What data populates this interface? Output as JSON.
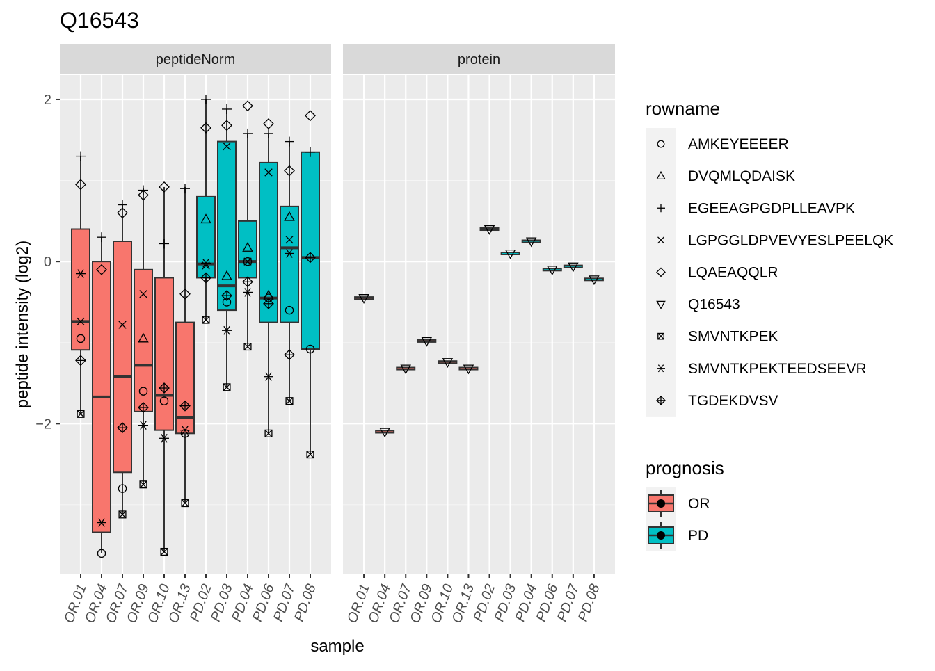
{
  "chart_data": {
    "type": "boxplot",
    "title": "Q16543",
    "xlabel": "sample",
    "ylabel": "peptide intensity (log2)",
    "ylim": [
      -3.85,
      2.3
    ],
    "yticks": [
      -2,
      0,
      2
    ],
    "grid": true,
    "legend_placement": "right",
    "facets": [
      "peptideNorm",
      "protein"
    ],
    "samples": [
      "OR.01",
      "OR.04",
      "OR.07",
      "OR.09",
      "OR.10",
      "OR.13",
      "PD.02",
      "PD.03",
      "PD.04",
      "PD.06",
      "PD.07",
      "PD.08"
    ],
    "prognosis": [
      "OR",
      "OR",
      "OR",
      "OR",
      "OR",
      "OR",
      "PD",
      "PD",
      "PD",
      "PD",
      "PD",
      "PD"
    ],
    "fill_legend": {
      "title": "prognosis",
      "items": [
        {
          "label": "OR",
          "color": "#F8766D"
        },
        {
          "label": "PD",
          "color": "#00BFC4"
        }
      ]
    },
    "shape_legend": {
      "title": "rowname",
      "items": [
        {
          "label": "AMKEYEEEER",
          "shape": "circle"
        },
        {
          "label": "DVQMLQDAISK",
          "shape": "triangle-up"
        },
        {
          "label": "EGEEAGPGDPLLEAVPK",
          "shape": "plus"
        },
        {
          "label": "LGPGGLDPVEVYESLPEELQK",
          "shape": "cross"
        },
        {
          "label": "LQAEAQQLR",
          "shape": "diamond"
        },
        {
          "label": "Q16543",
          "shape": "triangle-down"
        },
        {
          "label": "SMVNTKPEK",
          "shape": "square-cross"
        },
        {
          "label": "SMVNTKPEKTEEDSEEVR",
          "shape": "asterisk"
        },
        {
          "label": "TGDEKDVSV",
          "shape": "diamond-plus"
        }
      ]
    },
    "peptideNorm": {
      "boxes": [
        {
          "sample": "OR.01",
          "lower_whisker": -1.88,
          "q1": -1.09,
          "median": -0.74,
          "q3": 0.4,
          "upper_whisker": 1.3
        },
        {
          "sample": "OR.04",
          "lower_whisker": -3.6,
          "q1": -3.34,
          "median": -1.67,
          "q3": 0.0,
          "upper_whisker": 0.3
        },
        {
          "sample": "OR.07",
          "lower_whisker": -3.12,
          "q1": -2.6,
          "median": -1.42,
          "q3": 0.25,
          "upper_whisker": 0.7
        },
        {
          "sample": "OR.09",
          "lower_whisker": -2.75,
          "q1": -1.85,
          "median": -1.28,
          "q3": -0.1,
          "upper_whisker": 0.9
        },
        {
          "sample": "OR.10",
          "lower_whisker": -3.58,
          "q1": -2.08,
          "median": -1.65,
          "q3": -0.2,
          "upper_whisker": 0.92
        },
        {
          "sample": "OR.13",
          "lower_whisker": -2.98,
          "q1": -2.12,
          "median": -1.92,
          "q3": -0.75,
          "upper_whisker": 0.92
        },
        {
          "sample": "PD.02",
          "lower_whisker": -0.72,
          "q1": -0.2,
          "median": -0.03,
          "q3": 0.8,
          "upper_whisker": 2.0
        },
        {
          "sample": "PD.03",
          "lower_whisker": -1.55,
          "q1": -0.6,
          "median": -0.3,
          "q3": 1.48,
          "upper_whisker": 1.88
        },
        {
          "sample": "PD.04",
          "lower_whisker": -1.05,
          "q1": -0.2,
          "median": 0.0,
          "q3": 0.5,
          "upper_whisker": 1.58
        },
        {
          "sample": "PD.06",
          "lower_whisker": -2.12,
          "q1": -0.75,
          "median": -0.45,
          "q3": 1.22,
          "upper_whisker": 1.58
        },
        {
          "sample": "PD.07",
          "lower_whisker": -1.72,
          "q1": -0.75,
          "median": 0.17,
          "q3": 0.68,
          "upper_whisker": 1.48
        },
        {
          "sample": "PD.08",
          "lower_whisker": -2.38,
          "q1": -1.08,
          "median": 0.05,
          "q3": 1.35,
          "upper_whisker": 1.35
        }
      ],
      "points": [
        {
          "sample": "OR.01",
          "rowname": "AMKEYEEEER",
          "value": -0.95
        },
        {
          "sample": "OR.01",
          "rowname": "EGEEAGPGDPLLEAVPK",
          "value": 1.3
        },
        {
          "sample": "OR.01",
          "rowname": "LGPGGLDPVEVYESLPEELQK",
          "value": -0.74
        },
        {
          "sample": "OR.01",
          "rowname": "LQAEAQQLR",
          "value": 0.95
        },
        {
          "sample": "OR.01",
          "rowname": "SMVNTKPEK",
          "value": -1.88
        },
        {
          "sample": "OR.01",
          "rowname": "SMVNTKPEKTEEDSEEVR",
          "value": -0.15
        },
        {
          "sample": "OR.01",
          "rowname": "TGDEKDVSV",
          "value": -1.22
        },
        {
          "sample": "OR.04",
          "rowname": "AMKEYEEEER",
          "value": -3.6
        },
        {
          "sample": "OR.04",
          "rowname": "EGEEAGPGDPLLEAVPK",
          "value": 0.3
        },
        {
          "sample": "OR.04",
          "rowname": "LQAEAQQLR",
          "value": -0.1
        },
        {
          "sample": "OR.04",
          "rowname": "SMVNTKPEKTEEDSEEVR",
          "value": -3.22
        },
        {
          "sample": "OR.07",
          "rowname": "AMKEYEEEER",
          "value": -2.8
        },
        {
          "sample": "OR.07",
          "rowname": "EGEEAGPGDPLLEAVPK",
          "value": 0.7
        },
        {
          "sample": "OR.07",
          "rowname": "LGPGGLDPVEVYESLPEELQK",
          "value": -0.78
        },
        {
          "sample": "OR.07",
          "rowname": "LQAEAQQLR",
          "value": 0.6
        },
        {
          "sample": "OR.07",
          "rowname": "SMVNTKPEK",
          "value": -3.12
        },
        {
          "sample": "OR.07",
          "rowname": "TGDEKDVSV",
          "value": -2.05
        },
        {
          "sample": "OR.09",
          "rowname": "AMKEYEEEER",
          "value": -1.6
        },
        {
          "sample": "OR.09",
          "rowname": "DVQMLQDAISK",
          "value": -0.95
        },
        {
          "sample": "OR.09",
          "rowname": "EGEEAGPGDPLLEAVPK",
          "value": 0.88
        },
        {
          "sample": "OR.09",
          "rowname": "LGPGGLDPVEVYESLPEELQK",
          "value": -0.4
        },
        {
          "sample": "OR.09",
          "rowname": "LQAEAQQLR",
          "value": 0.82
        },
        {
          "sample": "OR.09",
          "rowname": "SMVNTKPEK",
          "value": -2.75
        },
        {
          "sample": "OR.09",
          "rowname": "SMVNTKPEKTEEDSEEVR",
          "value": -2.02
        },
        {
          "sample": "OR.09",
          "rowname": "TGDEKDVSV",
          "value": -1.8
        },
        {
          "sample": "OR.10",
          "rowname": "AMKEYEEEER",
          "value": -1.72
        },
        {
          "sample": "OR.10",
          "rowname": "EGEEAGPGDPLLEAVPK",
          "value": 0.22
        },
        {
          "sample": "OR.10",
          "rowname": "LQAEAQQLR",
          "value": 0.92
        },
        {
          "sample": "OR.10",
          "rowname": "SMVNTKPEK",
          "value": -3.58
        },
        {
          "sample": "OR.10",
          "rowname": "SMVNTKPEKTEEDSEEVR",
          "value": -2.18
        },
        {
          "sample": "OR.10",
          "rowname": "TGDEKDVSV",
          "value": -1.56
        },
        {
          "sample": "OR.13",
          "rowname": "AMKEYEEEER",
          "value": -2.12
        },
        {
          "sample": "OR.13",
          "rowname": "EGEEAGPGDPLLEAVPK",
          "value": 0.9
        },
        {
          "sample": "OR.13",
          "rowname": "LQAEAQQLR",
          "value": -0.4
        },
        {
          "sample": "OR.13",
          "rowname": "SMVNTKPEK",
          "value": -2.98
        },
        {
          "sample": "OR.13",
          "rowname": "SMVNTKPEKTEEDSEEVR",
          "value": -2.08
        },
        {
          "sample": "OR.13",
          "rowname": "TGDEKDVSV",
          "value": -1.78
        },
        {
          "sample": "PD.02",
          "rowname": "DVQMLQDAISK",
          "value": 0.52
        },
        {
          "sample": "PD.02",
          "rowname": "EGEEAGPGDPLLEAVPK",
          "value": 2.0
        },
        {
          "sample": "PD.02",
          "rowname": "LGPGGLDPVEVYESLPEELQK",
          "value": -0.05
        },
        {
          "sample": "PD.02",
          "rowname": "LQAEAQQLR",
          "value": 1.65
        },
        {
          "sample": "PD.02",
          "rowname": "SMVNTKPEK",
          "value": -0.72
        },
        {
          "sample": "PD.02",
          "rowname": "SMVNTKPEKTEEDSEEVR",
          "value": -0.02
        },
        {
          "sample": "PD.02",
          "rowname": "TGDEKDVSV",
          "value": -0.2
        },
        {
          "sample": "PD.03",
          "rowname": "AMKEYEEEER",
          "value": -0.5
        },
        {
          "sample": "PD.03",
          "rowname": "DVQMLQDAISK",
          "value": -0.18
        },
        {
          "sample": "PD.03",
          "rowname": "EGEEAGPGDPLLEAVPK",
          "value": 1.88
        },
        {
          "sample": "PD.03",
          "rowname": "LGPGGLDPVEVYESLPEELQK",
          "value": 1.42
        },
        {
          "sample": "PD.03",
          "rowname": "LQAEAQQLR",
          "value": 1.68
        },
        {
          "sample": "PD.03",
          "rowname": "SMVNTKPEK",
          "value": -1.55
        },
        {
          "sample": "PD.03",
          "rowname": "SMVNTKPEKTEEDSEEVR",
          "value": -0.85
        },
        {
          "sample": "PD.03",
          "rowname": "TGDEKDVSV",
          "value": -0.42
        },
        {
          "sample": "PD.04",
          "rowname": "AMKEYEEEER",
          "value": 0.0
        },
        {
          "sample": "PD.04",
          "rowname": "DVQMLQDAISK",
          "value": 0.17
        },
        {
          "sample": "PD.04",
          "rowname": "EGEEAGPGDPLLEAVPK",
          "value": 1.58
        },
        {
          "sample": "PD.04",
          "rowname": "LGPGGLDPVEVYESLPEELQK",
          "value": 0.0
        },
        {
          "sample": "PD.04",
          "rowname": "LQAEAQQLR",
          "value": 1.92
        },
        {
          "sample": "PD.04",
          "rowname": "SMVNTKPEK",
          "value": -1.05
        },
        {
          "sample": "PD.04",
          "rowname": "SMVNTKPEKTEEDSEEVR",
          "value": -0.38
        },
        {
          "sample": "PD.04",
          "rowname": "TGDEKDVSV",
          "value": -0.25
        },
        {
          "sample": "PD.06",
          "rowname": "AMKEYEEEER",
          "value": -0.45
        },
        {
          "sample": "PD.06",
          "rowname": "DVQMLQDAISK",
          "value": -0.42
        },
        {
          "sample": "PD.06",
          "rowname": "EGEEAGPGDPLLEAVPK",
          "value": 1.58
        },
        {
          "sample": "PD.06",
          "rowname": "LGPGGLDPVEVYESLPEELQK",
          "value": 1.1
        },
        {
          "sample": "PD.06",
          "rowname": "LQAEAQQLR",
          "value": 1.7
        },
        {
          "sample": "PD.06",
          "rowname": "SMVNTKPEK",
          "value": -2.12
        },
        {
          "sample": "PD.06",
          "rowname": "SMVNTKPEKTEEDSEEVR",
          "value": -1.42
        },
        {
          "sample": "PD.06",
          "rowname": "TGDEKDVSV",
          "value": -0.52
        },
        {
          "sample": "PD.07",
          "rowname": "AMKEYEEEER",
          "value": -0.6
        },
        {
          "sample": "PD.07",
          "rowname": "DVQMLQDAISK",
          "value": 0.55
        },
        {
          "sample": "PD.07",
          "rowname": "EGEEAGPGDPLLEAVPK",
          "value": 1.48
        },
        {
          "sample": "PD.07",
          "rowname": "LGPGGLDPVEVYESLPEELQK",
          "value": 0.27
        },
        {
          "sample": "PD.07",
          "rowname": "LQAEAQQLR",
          "value": 1.12
        },
        {
          "sample": "PD.07",
          "rowname": "SMVNTKPEK",
          "value": -1.72
        },
        {
          "sample": "PD.07",
          "rowname": "SMVNTKPEKTEEDSEEVR",
          "value": 0.1
        },
        {
          "sample": "PD.07",
          "rowname": "TGDEKDVSV",
          "value": -1.15
        },
        {
          "sample": "PD.08",
          "rowname": "AMKEYEEEER",
          "value": -1.08
        },
        {
          "sample": "PD.08",
          "rowname": "EGEEAGPGDPLLEAVPK",
          "value": 1.35
        },
        {
          "sample": "PD.08",
          "rowname": "LQAEAQQLR",
          "value": 1.8
        },
        {
          "sample": "PD.08",
          "rowname": "SMVNTKPEK",
          "value": -2.38
        },
        {
          "sample": "PD.08",
          "rowname": "TGDEKDVSV",
          "value": 0.05
        }
      ]
    },
    "protein": {
      "rowname": "Q16543",
      "values": [
        -0.45,
        -2.1,
        -1.32,
        -0.98,
        -1.24,
        -1.32,
        0.4,
        0.1,
        0.25,
        -0.1,
        -0.06,
        -0.22
      ]
    }
  }
}
